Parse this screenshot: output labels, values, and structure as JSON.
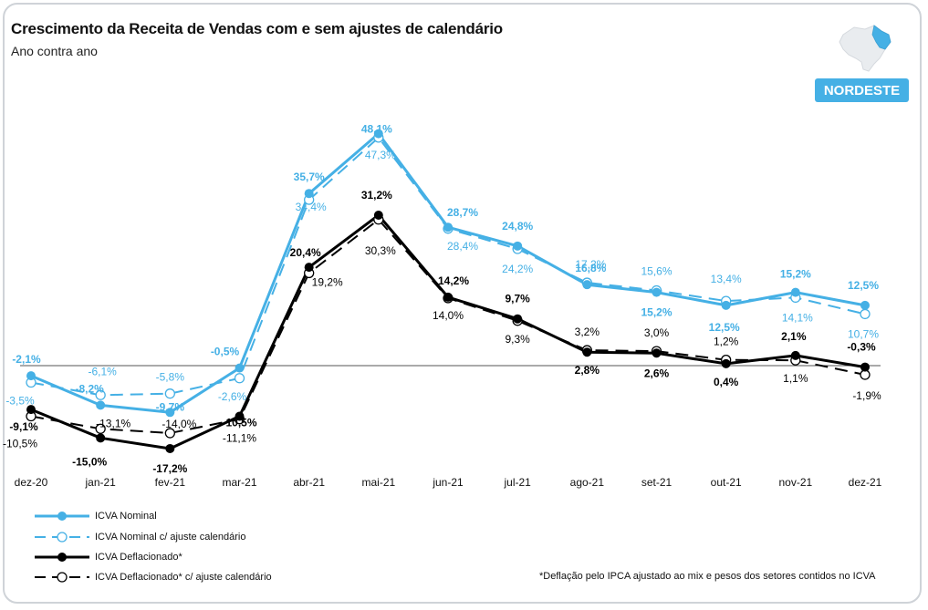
{
  "header": {
    "title": "Crescimento da Receita de Vendas com e sem ajustes de calendário",
    "subtitle": "Ano contra ano",
    "region": "NORDESTE"
  },
  "footnote": "*Deflação pelo IPCA ajustado ao mix e pesos dos setores contidos no ICVA",
  "colors": {
    "blue": "#45b0e5",
    "black": "#000000"
  },
  "icons": {
    "map": "brazil-map-icon"
  },
  "chart_data": {
    "type": "line",
    "title": "Crescimento da Receita de Vendas com e sem ajustes de calendário",
    "subtitle": "Ano contra ano",
    "categories": [
      "dez-20",
      "jan-21",
      "fev-21",
      "mar-21",
      "abr-21",
      "mai-21",
      "jun-21",
      "jul-21",
      "ago-21",
      "set-21",
      "out-21",
      "nov-21",
      "dez-21"
    ],
    "ylim": [
      -22,
      52
    ],
    "grid": false,
    "legend_position": "bottom-left",
    "series": [
      {
        "name": "ICVA Nominal",
        "style": "solid-filled",
        "color": "#45b0e5",
        "values": [
          -2.1,
          -8.2,
          -9.7,
          -0.5,
          35.7,
          48.1,
          28.7,
          24.8,
          16.8,
          15.2,
          12.5,
          15.2,
          12.5
        ],
        "labels": [
          "-2,1%",
          "-8,2%",
          "-9,7%",
          "-0,5%",
          "35,7%",
          "48,1%",
          "28,7%",
          "24,8%",
          "16,8%",
          "15,2%",
          "12,5%",
          "15,2%",
          "12,5%"
        ]
      },
      {
        "name": "ICVA Nominal c/ ajuste calendário",
        "style": "dashed-open",
        "color": "#45b0e5",
        "values": [
          -3.5,
          -6.1,
          -5.8,
          -2.6,
          34.4,
          47.3,
          28.4,
          24.2,
          17.2,
          15.6,
          13.4,
          14.1,
          10.7
        ],
        "labels": [
          "-3,5%",
          "-6,1%",
          "-5,8%",
          "-2,6%",
          "34,4%",
          "47,3%",
          "28,4%",
          "24,2%",
          "17,2%",
          "15,6%",
          "13,4%",
          "14,1%",
          "10,7%"
        ]
      },
      {
        "name": "ICVA Deflacionado*",
        "style": "solid-filled",
        "color": "#000000",
        "values": [
          -9.1,
          -15.0,
          -17.2,
          -10.5,
          20.4,
          31.2,
          14.2,
          9.7,
          2.8,
          2.6,
          0.4,
          2.1,
          -0.3
        ],
        "labels": [
          "-9,1%",
          "-15,0%",
          "-17,2%",
          "-10,5%",
          "20,4%",
          "31,2%",
          "14,2%",
          "9,7%",
          "2,8%",
          "2,6%",
          "0,4%",
          "2,1%",
          "-0,3%"
        ]
      },
      {
        "name": "ICVA Deflacionado* c/ ajuste calendário",
        "style": "dashed-open",
        "color": "#000000",
        "values": [
          -10.5,
          -13.1,
          -14.0,
          -11.1,
          19.2,
          30.3,
          14.0,
          9.3,
          3.2,
          3.0,
          1.2,
          1.1,
          -1.9
        ],
        "labels": [
          "-10,5%",
          "-13,1%",
          "-14,0%",
          "-11,1%",
          "19,2%",
          "30,3%",
          "14,0%",
          "9,3%",
          "3,2%",
          "3,0%",
          "1,2%",
          "1,1%",
          "-1,9%"
        ]
      }
    ]
  }
}
